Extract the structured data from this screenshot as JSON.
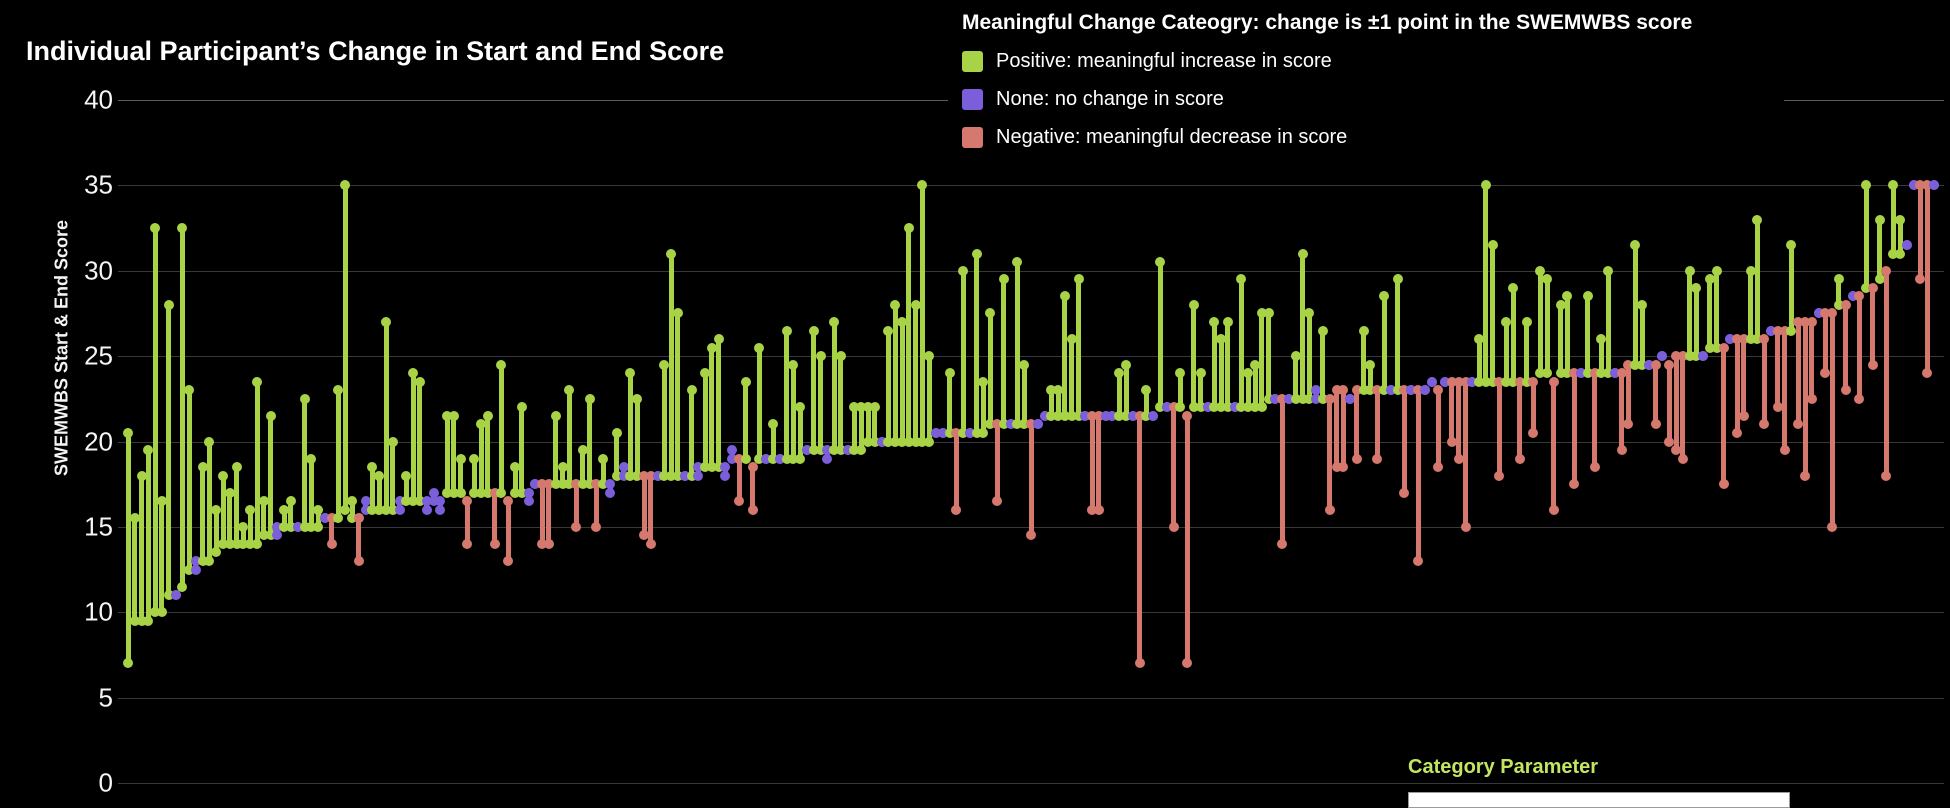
{
  "title": "Individual Participant’s Change in Start and End Score",
  "y_axis": {
    "title": "SWEMWBS Start & End Score",
    "ticks": [
      40,
      35,
      30,
      25,
      20,
      15,
      10,
      5,
      0
    ],
    "min": 0,
    "max": 40
  },
  "legend": {
    "title": "Meaningful Change Cateogry:  change is ±1 point in the SWEMWBS score",
    "items": [
      {
        "key": "positive",
        "label": "Positive: meaningful increase in score",
        "color": "#a8d347"
      },
      {
        "key": "none",
        "label": "None: no change in score",
        "color": "#7b5ed9"
      },
      {
        "key": "negative",
        "label": "Negative: meaningful decrease in score",
        "color": "#d5786d"
      }
    ]
  },
  "parameter_panel": {
    "label": "Category Parameter",
    "label_color": "#c3e662"
  },
  "chart_data": {
    "type": "dumbbell-gantt",
    "title": "Individual Participant’s Change in Start and End Score",
    "ylabel": "SWEMWBS Start & End Score",
    "ylim": [
      0,
      40
    ],
    "grid": "horizontal",
    "legend_position": "top-right",
    "x_meaning": "one mark per participant, sorted by ascending start score",
    "meaningful_change_threshold": 1,
    "point_format": [
      "start_score",
      "end_score"
    ],
    "points": [
      [
        7,
        20.5
      ],
      [
        9.5,
        15.5
      ],
      [
        9.5,
        18
      ],
      [
        9.5,
        19.5
      ],
      [
        10,
        32.5
      ],
      [
        10,
        16.5
      ],
      [
        11,
        28
      ],
      [
        11,
        11
      ],
      [
        11.5,
        32.5
      ],
      [
        12.5,
        23
      ],
      [
        12.5,
        13
      ],
      [
        13,
        18.5
      ],
      [
        13,
        20
      ],
      [
        13.5,
        16
      ],
      [
        14,
        18
      ],
      [
        14,
        17
      ],
      [
        14,
        18.5
      ],
      [
        14,
        15
      ],
      [
        14,
        16
      ],
      [
        14,
        23.5
      ],
      [
        14.5,
        16.5
      ],
      [
        14.5,
        21.5
      ],
      [
        14.5,
        15
      ],
      [
        15,
        16
      ],
      [
        15,
        16.5
      ],
      [
        15,
        15
      ],
      [
        15,
        22.5
      ],
      [
        15,
        19
      ],
      [
        15,
        16
      ],
      [
        15.5,
        15.5
      ],
      [
        15.5,
        14
      ],
      [
        15.5,
        23
      ],
      [
        16,
        35
      ],
      [
        15.5,
        16.5
      ],
      [
        15.5,
        13
      ],
      [
        16,
        16.5
      ],
      [
        16,
        18.5
      ],
      [
        16,
        18
      ],
      [
        16,
        27
      ],
      [
        16,
        20
      ],
      [
        16,
        16.5
      ],
      [
        16.5,
        18
      ],
      [
        16.5,
        24
      ],
      [
        16.5,
        23.5
      ],
      [
        16.5,
        16
      ],
      [
        16.5,
        17
      ],
      [
        16.5,
        16
      ],
      [
        17,
        21.5
      ],
      [
        17,
        21.5
      ],
      [
        17,
        19
      ],
      [
        16.5,
        14
      ],
      [
        17,
        19
      ],
      [
        17,
        21
      ],
      [
        17,
        21.5
      ],
      [
        17,
        14
      ],
      [
        17,
        24.5
      ],
      [
        16.5,
        13
      ],
      [
        17,
        18.5
      ],
      [
        17,
        22
      ],
      [
        17,
        16.5
      ],
      [
        17.5,
        17.5
      ],
      [
        17.5,
        14
      ],
      [
        17.5,
        14
      ],
      [
        17.5,
        21.5
      ],
      [
        17.5,
        18.5
      ],
      [
        17.5,
        23
      ],
      [
        17.5,
        15
      ],
      [
        17.5,
        19.5
      ],
      [
        17.5,
        22.5
      ],
      [
        17.5,
        15
      ],
      [
        17.5,
        19
      ],
      [
        17.5,
        17
      ],
      [
        18,
        20.5
      ],
      [
        18,
        18.5
      ],
      [
        18,
        24
      ],
      [
        18,
        22.5
      ],
      [
        18,
        14.5
      ],
      [
        18,
        14
      ],
      [
        18,
        18
      ],
      [
        18,
        24.5
      ],
      [
        18,
        31
      ],
      [
        18,
        27.5
      ],
      [
        18,
        18
      ],
      [
        18,
        23
      ],
      [
        18.5,
        18
      ],
      [
        18.5,
        24
      ],
      [
        18.5,
        25.5
      ],
      [
        18.5,
        26
      ],
      [
        18.5,
        18
      ],
      [
        19,
        19.5
      ],
      [
        19,
        16.5
      ],
      [
        19,
        23.5
      ],
      [
        18.5,
        16
      ],
      [
        19,
        25.5
      ],
      [
        19,
        19
      ],
      [
        19,
        21
      ],
      [
        19,
        19
      ],
      [
        19,
        26.5
      ],
      [
        19,
        24.5
      ],
      [
        19,
        22
      ],
      [
        19.5,
        19.5
      ],
      [
        19.5,
        26.5
      ],
      [
        19.5,
        25
      ],
      [
        19.5,
        19
      ],
      [
        19.5,
        27
      ],
      [
        19.5,
        25
      ],
      [
        19.5,
        19.5
      ],
      [
        19.5,
        22
      ],
      [
        19.5,
        22
      ],
      [
        20,
        22
      ],
      [
        20,
        22
      ],
      [
        20,
        20
      ],
      [
        20,
        26.5
      ],
      [
        20,
        28
      ],
      [
        20,
        27
      ],
      [
        20,
        32.5
      ],
      [
        20,
        28
      ],
      [
        20,
        35
      ],
      [
        20,
        25
      ],
      [
        20.5,
        20.5
      ],
      [
        20.5,
        20.5
      ],
      [
        20.5,
        24
      ],
      [
        20.5,
        16
      ],
      [
        20.5,
        30
      ],
      [
        20.5,
        20.5
      ],
      [
        20.5,
        31
      ],
      [
        20.5,
        23.5
      ],
      [
        21,
        27.5
      ],
      [
        21,
        16.5
      ],
      [
        21,
        29.5
      ],
      [
        21,
        21
      ],
      [
        21,
        30.5
      ],
      [
        21,
        24.5
      ],
      [
        21,
        14.5
      ],
      [
        21,
        21
      ],
      [
        21.5,
        21.5
      ],
      [
        21.5,
        23
      ],
      [
        21.5,
        23
      ],
      [
        21.5,
        28.5
      ],
      [
        21.5,
        26
      ],
      [
        21.5,
        29.5
      ],
      [
        21.5,
        21.5
      ],
      [
        21.5,
        16
      ],
      [
        21.5,
        16
      ],
      [
        21.5,
        21.5
      ],
      [
        21.5,
        21.5
      ],
      [
        21.5,
        24
      ],
      [
        21.5,
        24.5
      ],
      [
        21.5,
        21.5
      ],
      [
        21.5,
        7
      ],
      [
        21.5,
        23
      ],
      [
        21.5,
        21.5
      ],
      [
        22,
        30.5
      ],
      [
        22,
        22
      ],
      [
        22,
        15
      ],
      [
        22,
        24
      ],
      [
        21.5,
        7
      ],
      [
        22,
        28
      ],
      [
        22,
        24
      ],
      [
        22,
        22
      ],
      [
        22,
        27
      ],
      [
        22,
        26
      ],
      [
        22,
        27
      ],
      [
        22,
        22
      ],
      [
        22,
        29.5
      ],
      [
        22,
        24
      ],
      [
        22,
        24.5
      ],
      [
        22,
        27.5
      ],
      [
        22.5,
        27.5
      ],
      [
        22.5,
        22.5
      ],
      [
        22.5,
        14
      ],
      [
        22.5,
        22.5
      ],
      [
        22.5,
        25
      ],
      [
        22.5,
        31
      ],
      [
        22.5,
        27.5
      ],
      [
        22.5,
        23
      ],
      [
        22.5,
        26.5
      ],
      [
        22.5,
        16
      ],
      [
        23,
        18.5
      ],
      [
        23,
        18.5
      ],
      [
        22.5,
        22.5
      ],
      [
        23,
        19
      ],
      [
        23,
        26.5
      ],
      [
        23,
        24.5
      ],
      [
        23,
        19
      ],
      [
        23,
        28.5
      ],
      [
        23,
        23
      ],
      [
        23,
        29.5
      ],
      [
        23,
        17
      ],
      [
        23,
        23
      ],
      [
        23,
        13
      ],
      [
        23,
        23
      ],
      [
        23.5,
        23.5
      ],
      [
        23,
        18.5
      ],
      [
        23.5,
        23.5
      ],
      [
        23.5,
        20
      ],
      [
        23.5,
        19
      ],
      [
        23.5,
        15
      ],
      [
        23.5,
        23.5
      ],
      [
        23.5,
        26
      ],
      [
        23.5,
        35
      ],
      [
        23.5,
        31.5
      ],
      [
        23.5,
        18
      ],
      [
        23.5,
        27
      ],
      [
        23.5,
        29
      ],
      [
        23.5,
        19
      ],
      [
        23.5,
        27
      ],
      [
        23.5,
        20.5
      ],
      [
        24,
        30
      ],
      [
        24,
        29.5
      ],
      [
        23.5,
        16
      ],
      [
        24,
        28
      ],
      [
        24,
        28.5
      ],
      [
        24,
        17.5
      ],
      [
        24,
        24
      ],
      [
        24,
        28.5
      ],
      [
        24,
        18.5
      ],
      [
        24,
        26
      ],
      [
        24,
        30
      ],
      [
        24,
        24
      ],
      [
        24,
        19.5
      ],
      [
        24.5,
        21
      ],
      [
        24.5,
        31.5
      ],
      [
        24.5,
        28
      ],
      [
        24.5,
        24.5
      ],
      [
        24.5,
        21
      ],
      [
        25,
        25
      ],
      [
        24.5,
        20
      ],
      [
        25,
        19.5
      ],
      [
        25,
        19
      ],
      [
        25,
        30
      ],
      [
        25,
        29
      ],
      [
        25,
        25
      ],
      [
        25.5,
        29.5
      ],
      [
        25.5,
        30
      ],
      [
        25.5,
        17.5
      ],
      [
        26,
        26
      ],
      [
        26,
        20.5
      ],
      [
        26,
        21.5
      ],
      [
        26,
        30
      ],
      [
        26,
        33
      ],
      [
        26,
        21
      ],
      [
        26.5,
        26.5
      ],
      [
        26.5,
        22
      ],
      [
        26.5,
        19.5
      ],
      [
        26.5,
        31.5
      ],
      [
        27,
        21
      ],
      [
        27,
        18
      ],
      [
        27,
        22.5
      ],
      [
        27.5,
        27.5
      ],
      [
        27.5,
        24
      ],
      [
        27.5,
        15
      ],
      [
        28,
        29.5
      ],
      [
        28,
        23
      ],
      [
        28.5,
        28.5
      ],
      [
        28.5,
        22.5
      ],
      [
        29,
        35
      ],
      [
        29,
        24.5
      ],
      [
        29.5,
        33
      ],
      [
        30,
        18
      ],
      [
        31,
        35
      ],
      [
        31,
        33
      ],
      [
        31.5,
        31.5
      ],
      [
        35,
        35
      ],
      [
        35,
        29.5
      ],
      [
        35,
        24
      ],
      [
        35,
        35
      ]
    ]
  }
}
